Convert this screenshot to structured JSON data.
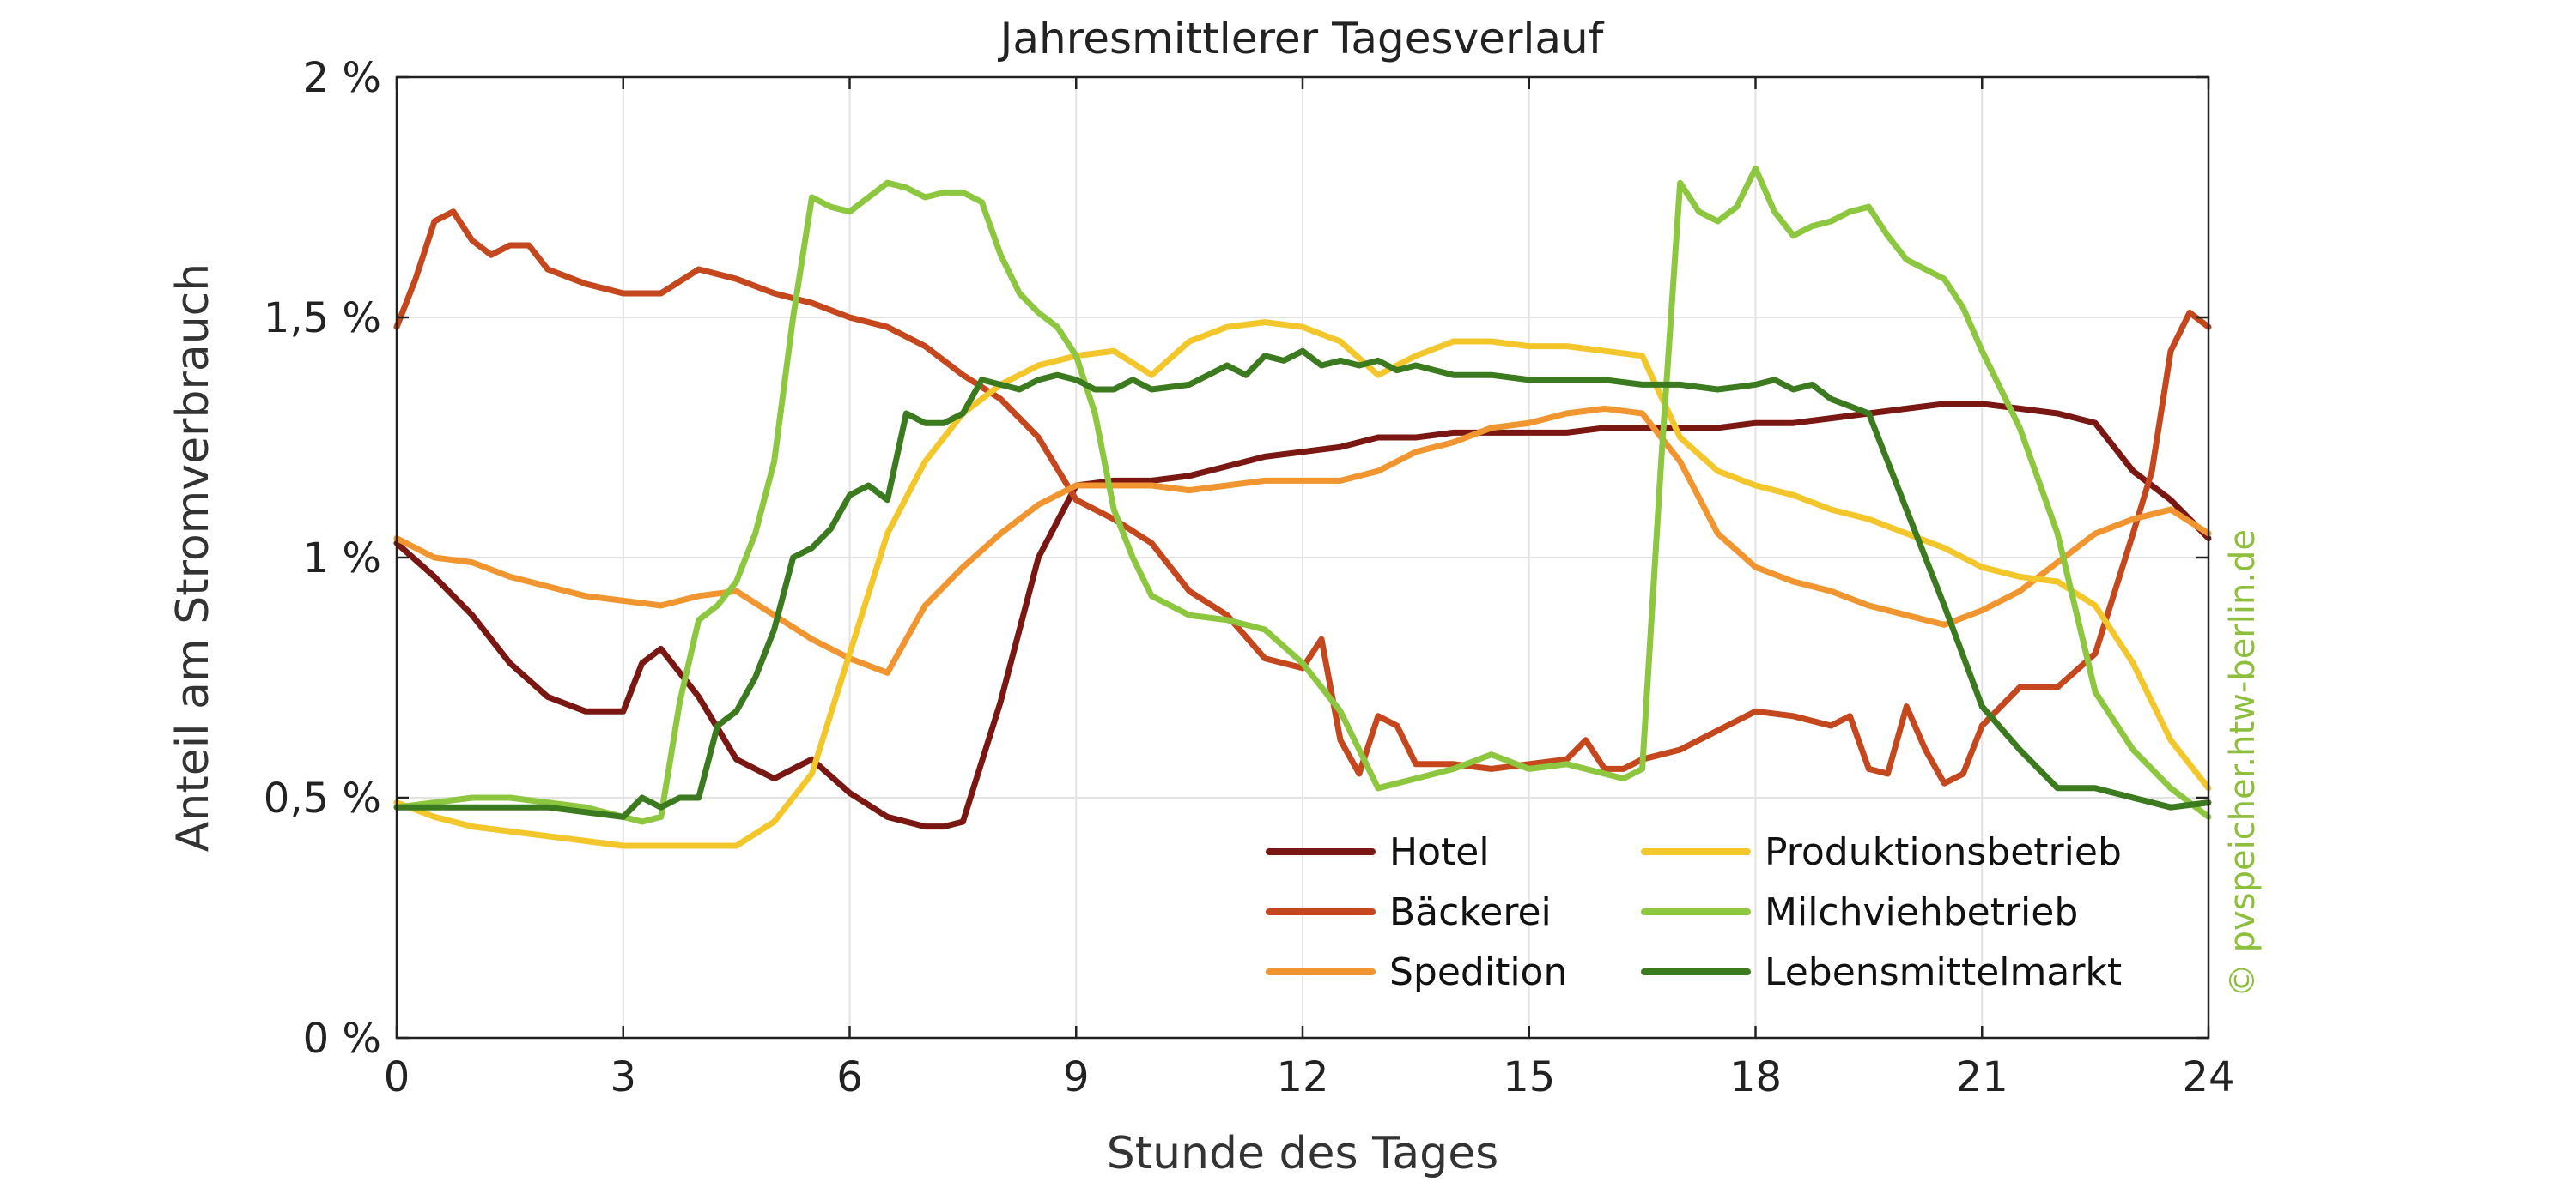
{
  "chart_data": {
    "type": "line",
    "title": "Jahresmittlerer Tagesverlauf",
    "xlabel": "Stunde des Tages",
    "ylabel": "Anteil am Stromverbrauch",
    "xlim": [
      0,
      24
    ],
    "ylim": [
      0,
      2
    ],
    "xticks": [
      0,
      3,
      6,
      9,
      12,
      15,
      18,
      21,
      24
    ],
    "xtick_labels": [
      "0",
      "3",
      "6",
      "9",
      "12",
      "15",
      "18",
      "21",
      "24"
    ],
    "yticks": [
      0,
      0.5,
      1,
      1.5,
      2
    ],
    "ytick_labels": [
      "0 %",
      "0,5 %",
      "1 %",
      "1,5 %",
      "2 %"
    ],
    "grid": true,
    "legend_position": "bottom-right",
    "watermark": "© pvspeicher.htw-berlin.de",
    "series": [
      {
        "name": "Hotel",
        "color": "#7a1712",
        "x": [
          0,
          0.5,
          1,
          1.5,
          2,
          2.5,
          3,
          3.25,
          3.5,
          4,
          4.5,
          5,
          5.5,
          6,
          6.5,
          7,
          7.25,
          7.5,
          8,
          8.5,
          9,
          9.5,
          10,
          10.5,
          11,
          11.5,
          12,
          12.5,
          13,
          13.5,
          14,
          14.5,
          15,
          15.5,
          16,
          16.5,
          17,
          17.5,
          18,
          18.5,
          19,
          19.5,
          20,
          20.5,
          21,
          21.5,
          22,
          22.5,
          23,
          23.5,
          24
        ],
        "y": [
          1.03,
          0.96,
          0.88,
          0.78,
          0.71,
          0.68,
          0.68,
          0.78,
          0.81,
          0.71,
          0.58,
          0.54,
          0.58,
          0.51,
          0.46,
          0.44,
          0.44,
          0.45,
          0.7,
          1.0,
          1.15,
          1.16,
          1.16,
          1.17,
          1.19,
          1.21,
          1.22,
          1.23,
          1.25,
          1.25,
          1.26,
          1.26,
          1.26,
          1.26,
          1.27,
          1.27,
          1.27,
          1.27,
          1.28,
          1.28,
          1.29,
          1.3,
          1.31,
          1.32,
          1.32,
          1.31,
          1.3,
          1.28,
          1.18,
          1.12,
          1.04
        ]
      },
      {
        "name": "Bäckerei",
        "color": "#c4471d",
        "x": [
          0,
          0.25,
          0.5,
          0.75,
          1,
          1.25,
          1.5,
          1.75,
          2,
          2.5,
          3,
          3.5,
          4,
          4.5,
          5,
          5.5,
          6,
          6.5,
          7,
          7.5,
          8,
          8.5,
          9,
          9.5,
          10,
          10.5,
          11,
          11.5,
          12,
          12.25,
          12.5,
          12.75,
          13,
          13.25,
          13.5,
          14,
          14.5,
          15,
          15.5,
          15.75,
          16,
          16.25,
          16.5,
          17,
          17.5,
          18,
          18.5,
          19,
          19.25,
          19.5,
          19.75,
          20,
          20.25,
          20.5,
          20.75,
          21,
          21.5,
          22,
          22.5,
          23,
          23.25,
          23.5,
          23.75,
          24
        ],
        "y": [
          1.48,
          1.58,
          1.7,
          1.72,
          1.66,
          1.63,
          1.65,
          1.65,
          1.6,
          1.57,
          1.55,
          1.55,
          1.6,
          1.58,
          1.55,
          1.53,
          1.5,
          1.48,
          1.44,
          1.38,
          1.33,
          1.25,
          1.12,
          1.08,
          1.03,
          0.93,
          0.88,
          0.79,
          0.77,
          0.83,
          0.62,
          0.55,
          0.67,
          0.65,
          0.57,
          0.57,
          0.56,
          0.57,
          0.58,
          0.62,
          0.56,
          0.56,
          0.58,
          0.6,
          0.64,
          0.68,
          0.67,
          0.65,
          0.67,
          0.56,
          0.55,
          0.69,
          0.6,
          0.53,
          0.55,
          0.65,
          0.73,
          0.73,
          0.8,
          1.05,
          1.18,
          1.43,
          1.51,
          1.48
        ]
      },
      {
        "name": "Spedition",
        "color": "#f0952f",
        "x": [
          0,
          0.5,
          1,
          1.5,
          2,
          2.5,
          3,
          3.5,
          4,
          4.5,
          5,
          5.5,
          6,
          6.5,
          7,
          7.5,
          8,
          8.5,
          9,
          9.5,
          10,
          10.5,
          11,
          11.5,
          12,
          12.5,
          13,
          13.5,
          14,
          14.5,
          15,
          15.5,
          16,
          16.5,
          17,
          17.5,
          18,
          18.5,
          19,
          19.5,
          20,
          20.5,
          21,
          21.5,
          22,
          22.5,
          23,
          23.5,
          24
        ],
        "y": [
          1.04,
          1.0,
          0.99,
          0.96,
          0.94,
          0.92,
          0.91,
          0.9,
          0.92,
          0.93,
          0.88,
          0.83,
          0.79,
          0.76,
          0.9,
          0.98,
          1.05,
          1.11,
          1.15,
          1.15,
          1.15,
          1.14,
          1.15,
          1.16,
          1.16,
          1.16,
          1.18,
          1.22,
          1.24,
          1.27,
          1.28,
          1.3,
          1.31,
          1.3,
          1.2,
          1.05,
          0.98,
          0.95,
          0.93,
          0.9,
          0.88,
          0.86,
          0.89,
          0.93,
          0.99,
          1.05,
          1.08,
          1.1,
          1.05
        ]
      },
      {
        "name": "Produktionsbetrieb",
        "color": "#f3c72c",
        "x": [
          0,
          0.5,
          1,
          1.5,
          2,
          2.5,
          3,
          3.5,
          4,
          4.5,
          5,
          5.5,
          6,
          6.5,
          7,
          7.5,
          8,
          8.5,
          9,
          9.5,
          10,
          10.5,
          11,
          11.5,
          12,
          12.5,
          13,
          13.5,
          14,
          14.5,
          15,
          15.5,
          16,
          16.5,
          17,
          17.5,
          18,
          18.5,
          19,
          19.5,
          20,
          20.5,
          21,
          21.5,
          22,
          22.5,
          23,
          23.5,
          24
        ],
        "y": [
          0.49,
          0.46,
          0.44,
          0.43,
          0.42,
          0.41,
          0.4,
          0.4,
          0.4,
          0.4,
          0.45,
          0.55,
          0.8,
          1.05,
          1.2,
          1.3,
          1.36,
          1.4,
          1.42,
          1.43,
          1.38,
          1.45,
          1.48,
          1.49,
          1.48,
          1.45,
          1.38,
          1.42,
          1.45,
          1.45,
          1.44,
          1.44,
          1.43,
          1.42,
          1.25,
          1.18,
          1.15,
          1.13,
          1.1,
          1.08,
          1.05,
          1.02,
          0.98,
          0.96,
          0.95,
          0.9,
          0.78,
          0.62,
          0.52
        ]
      },
      {
        "name": "Milchviehbetrieb",
        "color": "#8dc63f",
        "x": [
          0,
          0.5,
          1,
          1.5,
          2,
          2.5,
          3,
          3.25,
          3.5,
          3.75,
          4,
          4.25,
          4.5,
          4.75,
          5,
          5.25,
          5.5,
          5.75,
          6,
          6.25,
          6.5,
          6.75,
          7,
          7.25,
          7.5,
          7.75,
          8,
          8.25,
          8.5,
          8.75,
          9,
          9.25,
          9.5,
          9.75,
          10,
          10.5,
          11,
          11.5,
          12,
          12.5,
          13,
          13.5,
          14,
          14.5,
          15,
          15.5,
          16,
          16.25,
          16.5,
          16.75,
          17,
          17.25,
          17.5,
          17.75,
          18,
          18.25,
          18.5,
          18.75,
          19,
          19.25,
          19.5,
          19.75,
          20,
          20.25,
          20.5,
          20.75,
          21,
          21.5,
          22,
          22.5,
          23,
          23.5,
          24
        ],
        "y": [
          0.48,
          0.49,
          0.5,
          0.5,
          0.49,
          0.48,
          0.46,
          0.45,
          0.46,
          0.7,
          0.87,
          0.9,
          0.95,
          1.05,
          1.2,
          1.5,
          1.75,
          1.73,
          1.72,
          1.75,
          1.78,
          1.77,
          1.75,
          1.76,
          1.76,
          1.74,
          1.63,
          1.55,
          1.51,
          1.48,
          1.42,
          1.3,
          1.1,
          1.0,
          0.92,
          0.88,
          0.87,
          0.85,
          0.78,
          0.68,
          0.52,
          0.54,
          0.56,
          0.59,
          0.56,
          0.57,
          0.55,
          0.54,
          0.56,
          1.2,
          1.78,
          1.72,
          1.7,
          1.73,
          1.81,
          1.72,
          1.67,
          1.69,
          1.7,
          1.72,
          1.73,
          1.67,
          1.62,
          1.6,
          1.58,
          1.52,
          1.43,
          1.27,
          1.05,
          0.72,
          0.6,
          0.52,
          0.46
        ]
      },
      {
        "name": "Lebensmittelmarkt",
        "color": "#3c7a1f",
        "x": [
          0,
          0.5,
          1,
          1.5,
          2,
          2.5,
          3,
          3.25,
          3.5,
          3.75,
          4,
          4.25,
          4.5,
          4.75,
          5,
          5.25,
          5.5,
          5.75,
          6,
          6.25,
          6.5,
          6.75,
          7,
          7.25,
          7.5,
          7.75,
          8,
          8.25,
          8.5,
          8.75,
          9,
          9.25,
          9.5,
          9.75,
          10,
          10.5,
          11,
          11.25,
          11.5,
          11.75,
          12,
          12.25,
          12.5,
          12.75,
          13,
          13.25,
          13.5,
          13.75,
          14,
          14.5,
          15,
          15.5,
          16,
          16.5,
          17,
          17.5,
          18,
          18.25,
          18.5,
          18.75,
          19,
          19.5,
          20,
          20.5,
          21,
          21.5,
          22,
          22.5,
          23,
          23.5,
          24
        ],
        "y": [
          0.48,
          0.48,
          0.48,
          0.48,
          0.48,
          0.47,
          0.46,
          0.5,
          0.48,
          0.5,
          0.5,
          0.65,
          0.68,
          0.75,
          0.85,
          1.0,
          1.02,
          1.06,
          1.13,
          1.15,
          1.12,
          1.3,
          1.28,
          1.28,
          1.3,
          1.37,
          1.36,
          1.35,
          1.37,
          1.38,
          1.37,
          1.35,
          1.35,
          1.37,
          1.35,
          1.36,
          1.4,
          1.38,
          1.42,
          1.41,
          1.43,
          1.4,
          1.41,
          1.4,
          1.41,
          1.39,
          1.4,
          1.39,
          1.38,
          1.38,
          1.37,
          1.37,
          1.37,
          1.36,
          1.36,
          1.35,
          1.36,
          1.37,
          1.35,
          1.36,
          1.33,
          1.3,
          1.1,
          0.9,
          0.69,
          0.6,
          0.52,
          0.52,
          0.5,
          0.48,
          0.49
        ]
      }
    ]
  }
}
